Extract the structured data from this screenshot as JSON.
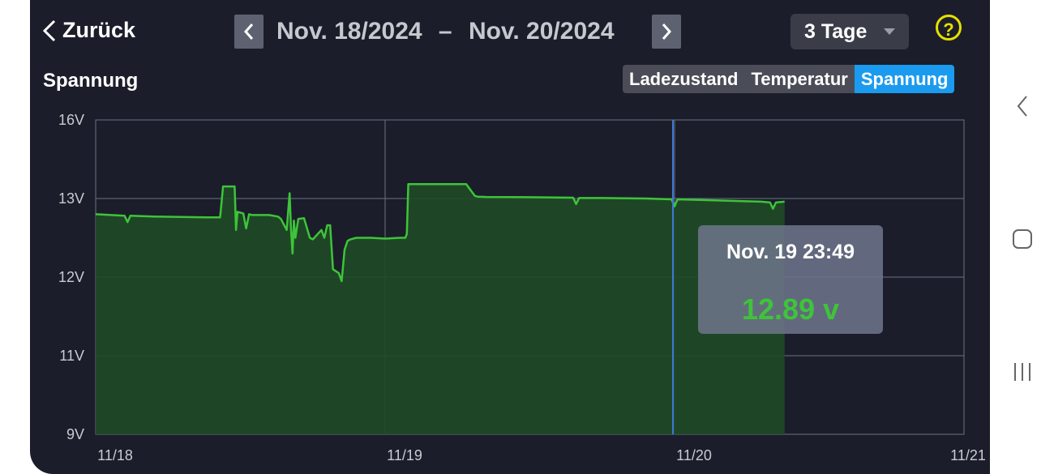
{
  "header": {
    "back_label": "Zurück",
    "date_start": "Nov. 18/2024",
    "date_sep": "–",
    "date_end": "Nov. 20/2024",
    "range_select": "3 Tage",
    "help_icon_text": "?"
  },
  "section_title": "Spannung",
  "tabs": [
    {
      "label": "Ladezustand",
      "active": false
    },
    {
      "label": "Temperatur",
      "active": false
    },
    {
      "label": "Spannung",
      "active": true
    }
  ],
  "tooltip": {
    "time": "Nov. 19 23:49",
    "value": "12.89 v"
  },
  "colors": {
    "background": "#1b1e2a",
    "line": "#3ec43a",
    "accent": "#1a9bef",
    "help": "#e6e000"
  },
  "chart_data": {
    "type": "area",
    "xlabel": "",
    "ylabel": "",
    "x_ticks": [
      "11/18",
      "11/19",
      "11/20",
      "11/21"
    ],
    "y_ticks": [
      "9V",
      "11V",
      "12V",
      "13V",
      "16V"
    ],
    "y_tick_values": [
      9,
      11,
      12,
      13,
      16
    ],
    "x_range_days": [
      0,
      3
    ],
    "cursor_x_days": 2.0,
    "grid": true,
    "series": [
      {
        "x": [
          0.0,
          0.1,
          0.11,
          0.12,
          0.2,
          0.4,
          0.43,
          0.44,
          0.48,
          0.485,
          0.49,
          0.51,
          0.52,
          0.53,
          0.54,
          0.6,
          0.63,
          0.64,
          0.66,
          0.67,
          0.675,
          0.68,
          0.685,
          0.69,
          0.7,
          0.72,
          0.74,
          0.75,
          0.76,
          0.78,
          0.79,
          0.8,
          0.81,
          0.82,
          0.84,
          0.85,
          0.86,
          0.87,
          0.88,
          0.9,
          0.94,
          0.95,
          1.0,
          1.05,
          1.07,
          1.075,
          1.08,
          1.09,
          1.2,
          1.28,
          1.31,
          1.32,
          1.35,
          1.5,
          1.65,
          1.66,
          1.67,
          1.75,
          1.9,
          1.99,
          2.0,
          2.01,
          2.1,
          2.3,
          2.33,
          2.34,
          2.35,
          2.38
        ],
        "y": [
          12.8,
          12.78,
          12.7,
          12.78,
          12.77,
          12.76,
          12.76,
          13.46,
          13.46,
          12.6,
          12.83,
          12.81,
          12.62,
          12.8,
          12.79,
          12.79,
          12.77,
          12.74,
          12.6,
          13.2,
          12.6,
          12.3,
          12.72,
          12.5,
          12.74,
          12.75,
          12.5,
          12.48,
          12.52,
          12.6,
          12.5,
          12.66,
          12.66,
          12.1,
          12.05,
          11.95,
          12.35,
          12.46,
          12.48,
          12.5,
          12.5,
          12.5,
          12.49,
          12.5,
          12.5,
          12.55,
          13.55,
          13.55,
          13.55,
          13.55,
          13.1,
          13.07,
          13.06,
          13.05,
          13.03,
          12.93,
          13.02,
          13.02,
          13.0,
          12.99,
          12.9,
          12.99,
          12.98,
          12.96,
          12.95,
          12.87,
          12.95,
          12.96
        ]
      }
    ]
  }
}
